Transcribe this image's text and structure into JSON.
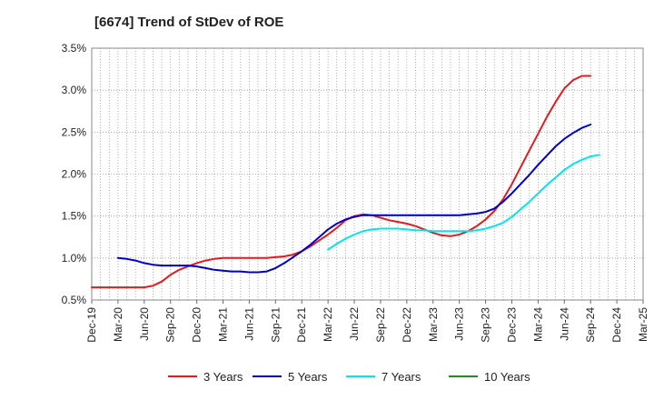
{
  "chart_data": {
    "type": "line",
    "title": "[6674]  Trend of StDev of ROE",
    "xlabel": "",
    "ylabel": "",
    "x_ticks": [
      "Dec-19",
      "Mar-20",
      "Jun-20",
      "Sep-20",
      "Dec-20",
      "Mar-21",
      "Jun-21",
      "Sep-21",
      "Dec-21",
      "Mar-22",
      "Jun-22",
      "Sep-22",
      "Dec-22",
      "Mar-23",
      "Jun-23",
      "Sep-23",
      "Dec-23",
      "Mar-24",
      "Jun-24",
      "Sep-24",
      "Dec-24",
      "Mar-25"
    ],
    "y_ticks": [
      "0.5%",
      "1.0%",
      "1.5%",
      "2.0%",
      "2.5%",
      "3.0%",
      "3.5%"
    ],
    "ylim": [
      0.5,
      3.5
    ],
    "grid": true,
    "legend_position": "bottom",
    "series": [
      {
        "name": "3 Years",
        "color": "#e41a1c",
        "points": [
          [
            "Dec-19",
            0.65
          ],
          [
            "Jan-20",
            0.65
          ],
          [
            "Feb-20",
            0.65
          ],
          [
            "Mar-20",
            0.65
          ],
          [
            "Apr-20",
            0.65
          ],
          [
            "May-20",
            0.65
          ],
          [
            "Jun-20",
            0.65
          ],
          [
            "Jul-20",
            0.67
          ],
          [
            "Aug-20",
            0.72
          ],
          [
            "Sep-20",
            0.8
          ],
          [
            "Oct-20",
            0.86
          ],
          [
            "Nov-20",
            0.9
          ],
          [
            "Dec-20",
            0.94
          ],
          [
            "Jan-21",
            0.97
          ],
          [
            "Feb-21",
            0.99
          ],
          [
            "Mar-21",
            1.0
          ],
          [
            "Apr-21",
            1.0
          ],
          [
            "May-21",
            1.0
          ],
          [
            "Jun-21",
            1.0
          ],
          [
            "Jul-21",
            1.0
          ],
          [
            "Aug-21",
            1.0
          ],
          [
            "Sep-21",
            1.01
          ],
          [
            "Oct-21",
            1.02
          ],
          [
            "Nov-21",
            1.04
          ],
          [
            "Dec-21",
            1.08
          ],
          [
            "Jan-22",
            1.14
          ],
          [
            "Feb-22",
            1.21
          ],
          [
            "Mar-22",
            1.28
          ],
          [
            "Apr-22",
            1.36
          ],
          [
            "May-22",
            1.45
          ],
          [
            "Jun-22",
            1.5
          ],
          [
            "Jul-22",
            1.52
          ],
          [
            "Aug-22",
            1.51
          ],
          [
            "Sep-22",
            1.48
          ],
          [
            "Oct-22",
            1.45
          ],
          [
            "Nov-22",
            1.43
          ],
          [
            "Dec-22",
            1.41
          ],
          [
            "Jan-23",
            1.38
          ],
          [
            "Feb-23",
            1.34
          ],
          [
            "Mar-23",
            1.3
          ],
          [
            "Apr-23",
            1.27
          ],
          [
            "May-23",
            1.26
          ],
          [
            "Jun-23",
            1.28
          ],
          [
            "Jul-23",
            1.32
          ],
          [
            "Aug-23",
            1.38
          ],
          [
            "Sep-23",
            1.46
          ],
          [
            "Oct-23",
            1.56
          ],
          [
            "Nov-23",
            1.7
          ],
          [
            "Dec-23",
            1.88
          ],
          [
            "Jan-24",
            2.08
          ],
          [
            "Feb-24",
            2.28
          ],
          [
            "Mar-24",
            2.48
          ],
          [
            "Apr-24",
            2.68
          ],
          [
            "May-24",
            2.86
          ],
          [
            "Jun-24",
            3.02
          ],
          [
            "Jul-24",
            3.12
          ],
          [
            "Aug-24",
            3.17
          ],
          [
            "Sep-24",
            3.17
          ]
        ]
      },
      {
        "name": "5 Years",
        "color": "#0000cc",
        "points": [
          [
            "Mar-20",
            1.0
          ],
          [
            "Apr-20",
            0.99
          ],
          [
            "May-20",
            0.97
          ],
          [
            "Jun-20",
            0.94
          ],
          [
            "Jul-20",
            0.92
          ],
          [
            "Aug-20",
            0.91
          ],
          [
            "Sep-20",
            0.91
          ],
          [
            "Oct-20",
            0.91
          ],
          [
            "Nov-20",
            0.91
          ],
          [
            "Dec-20",
            0.9
          ],
          [
            "Jan-21",
            0.88
          ],
          [
            "Feb-21",
            0.86
          ],
          [
            "Mar-21",
            0.85
          ],
          [
            "Apr-21",
            0.84
          ],
          [
            "May-21",
            0.84
          ],
          [
            "Jun-21",
            0.83
          ],
          [
            "Jul-21",
            0.83
          ],
          [
            "Aug-21",
            0.84
          ],
          [
            "Sep-21",
            0.88
          ],
          [
            "Oct-21",
            0.94
          ],
          [
            "Nov-21",
            1.01
          ],
          [
            "Dec-21",
            1.08
          ],
          [
            "Jan-22",
            1.16
          ],
          [
            "Feb-22",
            1.25
          ],
          [
            "Mar-22",
            1.34
          ],
          [
            "Apr-22",
            1.41
          ],
          [
            "May-22",
            1.46
          ],
          [
            "Jun-22",
            1.49
          ],
          [
            "Jul-22",
            1.51
          ],
          [
            "Aug-22",
            1.51
          ],
          [
            "Sep-22",
            1.51
          ],
          [
            "Oct-22",
            1.51
          ],
          [
            "Nov-22",
            1.51
          ],
          [
            "Dec-22",
            1.51
          ],
          [
            "Jan-23",
            1.51
          ],
          [
            "Feb-23",
            1.51
          ],
          [
            "Mar-23",
            1.51
          ],
          [
            "Apr-23",
            1.51
          ],
          [
            "May-23",
            1.51
          ],
          [
            "Jun-23",
            1.51
          ],
          [
            "Jul-23",
            1.52
          ],
          [
            "Aug-23",
            1.53
          ],
          [
            "Sep-23",
            1.55
          ],
          [
            "Oct-23",
            1.59
          ],
          [
            "Nov-23",
            1.67
          ],
          [
            "Dec-23",
            1.77
          ],
          [
            "Jan-24",
            1.88
          ],
          [
            "Feb-24",
            1.99
          ],
          [
            "Mar-24",
            2.11
          ],
          [
            "Apr-24",
            2.22
          ],
          [
            "May-24",
            2.33
          ],
          [
            "Jun-24",
            2.42
          ],
          [
            "Jul-24",
            2.49
          ],
          [
            "Aug-24",
            2.55
          ],
          [
            "Sep-24",
            2.59
          ]
        ]
      },
      {
        "name": "7 Years",
        "color": "#00e5ee",
        "points": [
          [
            "Mar-22",
            1.1
          ],
          [
            "Apr-22",
            1.17
          ],
          [
            "May-22",
            1.23
          ],
          [
            "Jun-22",
            1.28
          ],
          [
            "Jul-22",
            1.32
          ],
          [
            "Aug-22",
            1.34
          ],
          [
            "Sep-22",
            1.35
          ],
          [
            "Oct-22",
            1.35
          ],
          [
            "Nov-22",
            1.35
          ],
          [
            "Dec-22",
            1.34
          ],
          [
            "Jan-23",
            1.33
          ],
          [
            "Feb-23",
            1.33
          ],
          [
            "Mar-23",
            1.32
          ],
          [
            "Apr-23",
            1.32
          ],
          [
            "May-23",
            1.32
          ],
          [
            "Jun-23",
            1.32
          ],
          [
            "Jul-23",
            1.32
          ],
          [
            "Aug-23",
            1.33
          ],
          [
            "Sep-23",
            1.35
          ],
          [
            "Oct-23",
            1.38
          ],
          [
            "Nov-23",
            1.42
          ],
          [
            "Dec-23",
            1.49
          ],
          [
            "Jan-24",
            1.58
          ],
          [
            "Feb-24",
            1.67
          ],
          [
            "Mar-24",
            1.77
          ],
          [
            "Apr-24",
            1.87
          ],
          [
            "May-24",
            1.96
          ],
          [
            "Jun-24",
            2.05
          ],
          [
            "Jul-24",
            2.12
          ],
          [
            "Aug-24",
            2.17
          ],
          [
            "Sep-24",
            2.21
          ],
          [
            "Oct-24",
            2.23
          ]
        ]
      },
      {
        "name": "10 Years",
        "color": "#228b22",
        "points": []
      }
    ]
  }
}
